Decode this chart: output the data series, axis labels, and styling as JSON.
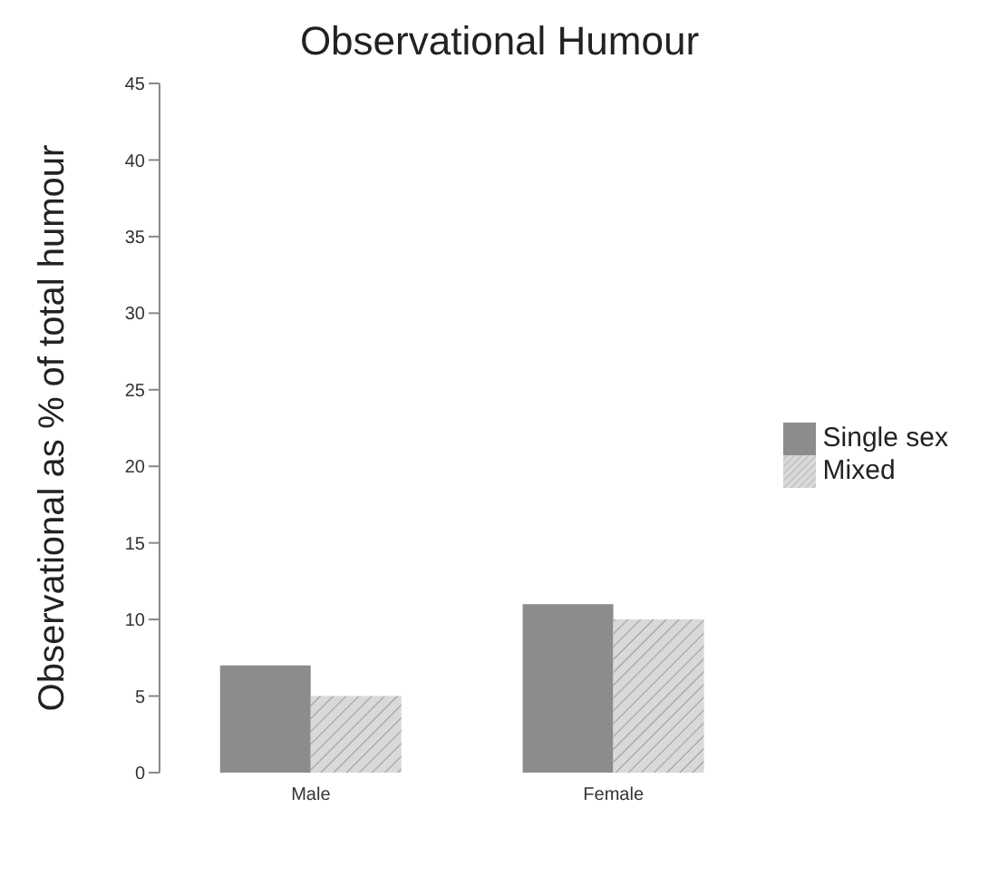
{
  "chart_data": {
    "type": "bar",
    "title": "Observational Humour",
    "ylabel": "Observational  as % of total humour",
    "categories": [
      "Male",
      "Female"
    ],
    "series": [
      {
        "name": "Single sex",
        "color": "#8c8c8c",
        "values": [
          7,
          11
        ]
      },
      {
        "name": "Mixed",
        "color": "#d9d9d9",
        "values": [
          5,
          10
        ]
      }
    ],
    "ylim": [
      0,
      45
    ],
    "yticks": [
      0,
      5,
      10,
      15,
      20,
      25,
      30,
      35,
      40,
      45
    ],
    "grid": false,
    "legend": "right"
  }
}
